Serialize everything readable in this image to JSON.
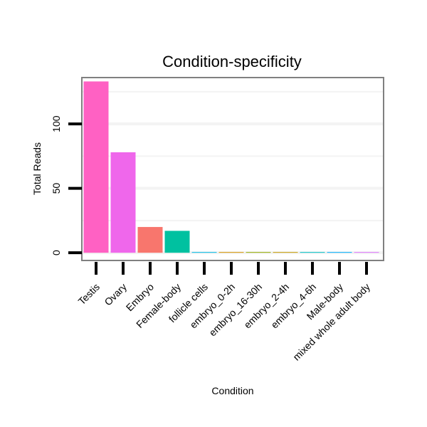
{
  "chart_data": {
    "type": "bar",
    "title": "Condition-specificity",
    "xlabel": "Condition",
    "ylabel": "Total Reads",
    "ylim": [
      -6,
      136
    ],
    "yticks": [
      0,
      50,
      100
    ],
    "grid": true,
    "categories": [
      "Testis",
      "Ovary",
      "Embryo",
      "Female-body",
      "follicle cells",
      "embryo_0-2h",
      "embryo_16-30h",
      "embryo_2-4h",
      "embryo_4-6h",
      "Male-body",
      "mixed whole adult body"
    ],
    "values": [
      133,
      78,
      20,
      17,
      0.4,
      0.4,
      0.4,
      0.4,
      0.4,
      0.4,
      0.4
    ],
    "colors": [
      "#FF61C3",
      "#EF67EB",
      "#F8766D",
      "#00C1A0",
      "#00B9E3",
      "#D39200",
      "#93AA00",
      "#C49A00",
      "#00BFC4",
      "#00ADFA",
      "#DB72FB"
    ],
    "legend": "none"
  }
}
